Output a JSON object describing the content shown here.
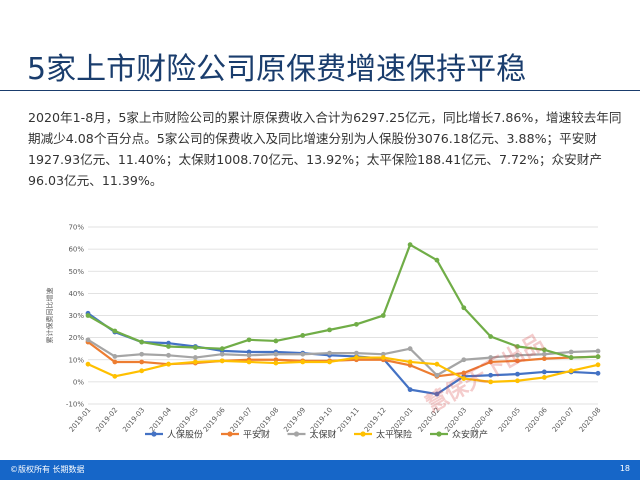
{
  "slide": {
    "title": "5家上市财险公司原保费增速保持平稳",
    "paragraph": "2020年1-8月，5家上市财险公司的累计原保费收入合计为6297.25亿元，同比增长7.86%，增速较去年同期减少4.08个百分点。5家公司的保费收入及同比增速分别为人保股份3076.18亿元、3.88%；平安财1927.93亿元、11.40%；太保财1008.70亿元、13.92%；太平保险188.41亿元、7.72%；众安财产96.03亿元、11.39%。",
    "footer_copyright": "©版权所有 长期数据",
    "page_number": "18",
    "watermark": "慧保天下出品"
  },
  "chart_data": {
    "type": "line",
    "ylabel": "累计保费同比增速",
    "xlabel": "",
    "ylim": [
      -10,
      70
    ],
    "yticks": [
      "-10%",
      "0%",
      "10%",
      "20%",
      "30%",
      "40%",
      "50%",
      "60%",
      "70%"
    ],
    "x": [
      "2019-01",
      "2019-02",
      "2019-03",
      "2019-04",
      "2019-05",
      "2019-06",
      "2019-07",
      "2019-08",
      "2019-09",
      "2019-10",
      "2019-11",
      "2019-12",
      "2020-01",
      "2020-02",
      "2020-03",
      "2020-04",
      "2020-05",
      "2020-06",
      "2020-07",
      "2020-08"
    ],
    "grid": true,
    "legend": "bottom",
    "series": [
      {
        "name": "人保股份",
        "color": "#4472c4",
        "values": [
          31,
          22.5,
          18,
          17.5,
          16,
          14,
          13.5,
          13.5,
          13,
          12,
          11.5,
          10.5,
          -3.5,
          -5.5,
          2.5,
          3,
          3.5,
          4.5,
          4.5,
          3.88
        ]
      },
      {
        "name": "平安财",
        "color": "#ed7d31",
        "values": [
          18,
          9,
          9,
          8,
          8.5,
          9.5,
          10,
          10,
          9.5,
          9.5,
          10,
          10,
          7.5,
          2.5,
          4,
          9,
          9.5,
          10.5,
          11,
          11.4
        ]
      },
      {
        "name": "太保财",
        "color": "#a5a5a5",
        "values": [
          19,
          11.5,
          12.5,
          12,
          11,
          12.5,
          12,
          12.5,
          12.5,
          13,
          13,
          12.5,
          15,
          3,
          10,
          11,
          12,
          12.5,
          13.5,
          13.92
        ]
      },
      {
        "name": "太平保险",
        "color": "#ffc000",
        "values": [
          8,
          2.5,
          5,
          8,
          9,
          9.5,
          9,
          8.5,
          9,
          9,
          11,
          11,
          9,
          8,
          1.5,
          0,
          0.5,
          2,
          5,
          7.72
        ]
      },
      {
        "name": "众安财产",
        "color": "#70ad47",
        "values": [
          30,
          23,
          18,
          16,
          15.5,
          15,
          19,
          18.5,
          21,
          23.5,
          26,
          30,
          62,
          55,
          33.5,
          20.5,
          16,
          14.5,
          11,
          11.39
        ]
      }
    ]
  }
}
